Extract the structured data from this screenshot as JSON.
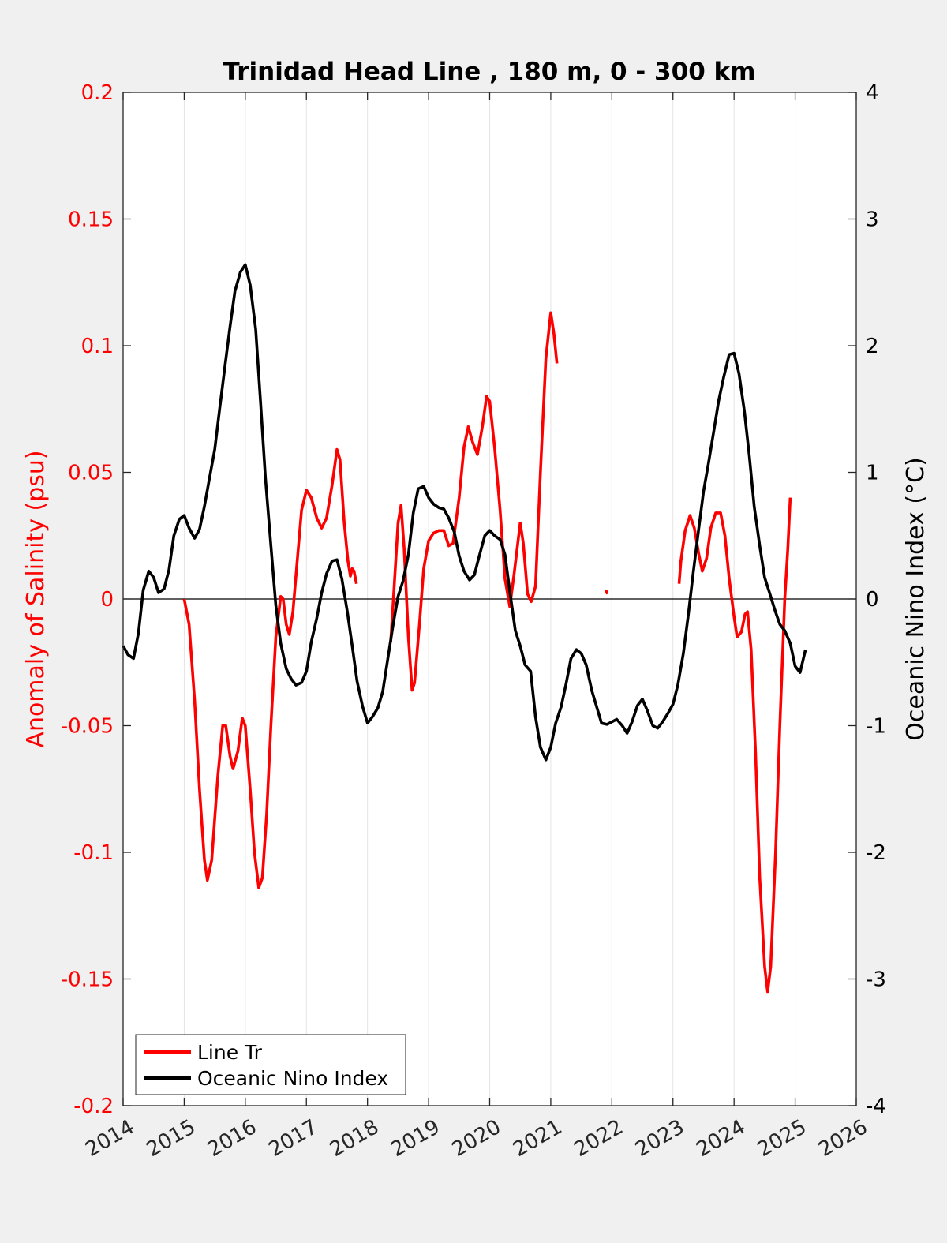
{
  "chart_data": {
    "type": "line",
    "title": "Trinidad Head Line , 180 m, 0 - 300 km",
    "ylabel_left": "Anomaly of Salinity (psu)",
    "ylabel_right": "Oceanic Nino Index (°C)",
    "xlim": [
      2014,
      2026
    ],
    "ylim_left": [
      -0.2,
      0.2
    ],
    "ylim_right": [
      -4,
      4
    ],
    "x_ticks": [
      "2014",
      "2015",
      "2016",
      "2017",
      "2018",
      "2019",
      "2020",
      "2021",
      "2022",
      "2023",
      "2024",
      "2025",
      "2026"
    ],
    "y_ticks_left": [
      "0.2",
      "0.15",
      "0.1",
      "0.05",
      "0",
      "-0.05",
      "-0.1",
      "-0.15",
      "-0.2"
    ],
    "y_ticks_right": [
      "4",
      "3",
      "2",
      "1",
      "0",
      "-1",
      "-2",
      "-3",
      "-4"
    ],
    "x_grid": true,
    "zero_line": true,
    "legend": {
      "position": "bottom-left",
      "entries": [
        "Line Tr",
        "Oceanic Nino Index"
      ]
    },
    "colors": {
      "salinity": "#ff0000",
      "oni": "#000000"
    },
    "series": [
      {
        "name": "Line Tr",
        "axis": "left",
        "segments": [
          [
            [
              2015.0,
              0.0
            ],
            [
              2015.08,
              -0.01
            ],
            [
              2015.17,
              -0.04
            ],
            [
              2015.25,
              -0.075
            ],
            [
              2015.33,
              -0.103
            ],
            [
              2015.38,
              -0.111
            ],
            [
              2015.45,
              -0.103
            ],
            [
              2015.55,
              -0.07
            ],
            [
              2015.63,
              -0.05
            ],
            [
              2015.68,
              -0.05
            ],
            [
              2015.75,
              -0.062
            ],
            [
              2015.8,
              -0.067
            ],
            [
              2015.88,
              -0.06
            ],
            [
              2015.95,
              -0.047
            ],
            [
              2016.0,
              -0.05
            ],
            [
              2016.08,
              -0.075
            ],
            [
              2016.15,
              -0.1
            ],
            [
              2016.22,
              -0.114
            ],
            [
              2016.28,
              -0.11
            ],
            [
              2016.35,
              -0.085
            ],
            [
              2016.42,
              -0.05
            ],
            [
              2016.5,
              -0.015
            ],
            [
              2016.58,
              0.001
            ],
            [
              2016.62,
              0.0
            ],
            [
              2016.67,
              -0.01
            ],
            [
              2016.72,
              -0.014
            ],
            [
              2016.78,
              -0.005
            ],
            [
              2016.85,
              0.015
            ],
            [
              2016.92,
              0.035
            ],
            [
              2017.0,
              0.043
            ],
            [
              2017.08,
              0.04
            ],
            [
              2017.17,
              0.032
            ],
            [
              2017.25,
              0.028
            ],
            [
              2017.33,
              0.032
            ],
            [
              2017.42,
              0.045
            ],
            [
              2017.5,
              0.059
            ],
            [
              2017.55,
              0.055
            ],
            [
              2017.62,
              0.03
            ],
            [
              2017.68,
              0.015
            ],
            [
              2017.72,
              0.009
            ],
            [
              2017.75,
              0.012
            ],
            [
              2017.78,
              0.011
            ],
            [
              2017.82,
              0.006
            ]
          ],
          [
            [
              2018.38,
              -0.017
            ],
            [
              2018.45,
              0.01
            ],
            [
              2018.5,
              0.03
            ],
            [
              2018.55,
              0.037
            ],
            [
              2018.6,
              0.02
            ],
            [
              2018.67,
              -0.015
            ],
            [
              2018.73,
              -0.036
            ],
            [
              2018.77,
              -0.033
            ],
            [
              2018.85,
              -0.01
            ],
            [
              2018.92,
              0.012
            ],
            [
              2019.0,
              0.023
            ],
            [
              2019.08,
              0.026
            ],
            [
              2019.17,
              0.027
            ],
            [
              2019.25,
              0.027
            ],
            [
              2019.33,
              0.021
            ],
            [
              2019.4,
              0.022
            ],
            [
              2019.5,
              0.04
            ],
            [
              2019.58,
              0.06
            ],
            [
              2019.65,
              0.068
            ],
            [
              2019.72,
              0.062
            ],
            [
              2019.8,
              0.057
            ],
            [
              2019.88,
              0.068
            ],
            [
              2019.95,
              0.08
            ],
            [
              2020.0,
              0.078
            ],
            [
              2020.08,
              0.06
            ],
            [
              2020.17,
              0.035
            ],
            [
              2020.25,
              0.008
            ],
            [
              2020.33,
              -0.003
            ],
            [
              2020.4,
              0.01
            ],
            [
              2020.5,
              0.03
            ],
            [
              2020.55,
              0.022
            ],
            [
              2020.62,
              0.002
            ],
            [
              2020.68,
              -0.001
            ],
            [
              2020.75,
              0.005
            ],
            [
              2020.83,
              0.05
            ],
            [
              2020.92,
              0.095
            ],
            [
              2021.0,
              0.113
            ],
            [
              2021.05,
              0.105
            ],
            [
              2021.1,
              0.093
            ]
          ],
          [
            [
              2021.9,
              0.0035
            ],
            [
              2021.93,
              0.002
            ]
          ],
          [
            [
              2023.1,
              0.006
            ],
            [
              2023.13,
              0.015
            ],
            [
              2023.2,
              0.027
            ],
            [
              2023.28,
              0.033
            ],
            [
              2023.35,
              0.028
            ],
            [
              2023.42,
              0.018
            ],
            [
              2023.48,
              0.011
            ],
            [
              2023.55,
              0.016
            ],
            [
              2023.62,
              0.028
            ],
            [
              2023.7,
              0.034
            ],
            [
              2023.78,
              0.034
            ],
            [
              2023.85,
              0.025
            ],
            [
              2023.92,
              0.008
            ],
            [
              2024.0,
              -0.007
            ],
            [
              2024.05,
              -0.015
            ],
            [
              2024.12,
              -0.013
            ],
            [
              2024.18,
              -0.006
            ],
            [
              2024.22,
              -0.005
            ],
            [
              2024.28,
              -0.02
            ],
            [
              2024.35,
              -0.06
            ],
            [
              2024.42,
              -0.11
            ],
            [
              2024.5,
              -0.145
            ],
            [
              2024.55,
              -0.155
            ],
            [
              2024.6,
              -0.145
            ],
            [
              2024.68,
              -0.1
            ],
            [
              2024.75,
              -0.05
            ],
            [
              2024.83,
              0.0
            ],
            [
              2024.88,
              0.02
            ],
            [
              2024.92,
              0.04
            ]
          ]
        ]
      },
      {
        "name": "Oceanic Nino Index",
        "axis": "right",
        "segments": [
          [
            [
              2014.0,
              -0.37
            ],
            [
              2014.08,
              -0.44
            ],
            [
              2014.17,
              -0.47
            ],
            [
              2014.25,
              -0.27
            ],
            [
              2014.33,
              0.07
            ],
            [
              2014.42,
              0.22
            ],
            [
              2014.5,
              0.17
            ],
            [
              2014.58,
              0.05
            ],
            [
              2014.67,
              0.08
            ],
            [
              2014.75,
              0.23
            ],
            [
              2014.83,
              0.5
            ],
            [
              2014.92,
              0.63
            ],
            [
              2015.0,
              0.66
            ],
            [
              2015.08,
              0.56
            ],
            [
              2015.17,
              0.48
            ],
            [
              2015.25,
              0.55
            ],
            [
              2015.33,
              0.73
            ],
            [
              2015.42,
              0.97
            ],
            [
              2015.5,
              1.18
            ],
            [
              2015.58,
              1.5
            ],
            [
              2015.67,
              1.85
            ],
            [
              2015.75,
              2.15
            ],
            [
              2015.83,
              2.43
            ],
            [
              2015.92,
              2.58
            ],
            [
              2016.0,
              2.64
            ],
            [
              2016.08,
              2.48
            ],
            [
              2016.17,
              2.13
            ],
            [
              2016.25,
              1.55
            ],
            [
              2016.33,
              0.95
            ],
            [
              2016.42,
              0.42
            ],
            [
              2016.5,
              -0.05
            ],
            [
              2016.58,
              -0.35
            ],
            [
              2016.67,
              -0.55
            ],
            [
              2016.75,
              -0.63
            ],
            [
              2016.83,
              -0.68
            ],
            [
              2016.92,
              -0.66
            ],
            [
              2017.0,
              -0.57
            ],
            [
              2017.08,
              -0.34
            ],
            [
              2017.17,
              -0.15
            ],
            [
              2017.25,
              0.05
            ],
            [
              2017.33,
              0.2
            ],
            [
              2017.42,
              0.3
            ],
            [
              2017.5,
              0.31
            ],
            [
              2017.58,
              0.16
            ],
            [
              2017.67,
              -0.1
            ],
            [
              2017.75,
              -0.37
            ],
            [
              2017.83,
              -0.65
            ],
            [
              2017.92,
              -0.85
            ],
            [
              2018.0,
              -0.98
            ],
            [
              2018.08,
              -0.93
            ],
            [
              2018.17,
              -0.86
            ],
            [
              2018.25,
              -0.73
            ],
            [
              2018.33,
              -0.48
            ],
            [
              2018.42,
              -0.2
            ],
            [
              2018.5,
              0.02
            ],
            [
              2018.58,
              0.14
            ],
            [
              2018.67,
              0.35
            ],
            [
              2018.75,
              0.68
            ],
            [
              2018.83,
              0.87
            ],
            [
              2018.92,
              0.89
            ],
            [
              2019.0,
              0.8
            ],
            [
              2019.08,
              0.75
            ],
            [
              2019.17,
              0.72
            ],
            [
              2019.25,
              0.71
            ],
            [
              2019.33,
              0.64
            ],
            [
              2019.42,
              0.53
            ],
            [
              2019.5,
              0.34
            ],
            [
              2019.58,
              0.22
            ],
            [
              2019.67,
              0.15
            ],
            [
              2019.75,
              0.19
            ],
            [
              2019.83,
              0.34
            ],
            [
              2019.92,
              0.5
            ],
            [
              2020.0,
              0.54
            ],
            [
              2020.08,
              0.5
            ],
            [
              2020.17,
              0.47
            ],
            [
              2020.25,
              0.35
            ],
            [
              2020.33,
              0.06
            ],
            [
              2020.42,
              -0.25
            ],
            [
              2020.5,
              -0.37
            ],
            [
              2020.58,
              -0.52
            ],
            [
              2020.67,
              -0.57
            ],
            [
              2020.75,
              -0.93
            ],
            [
              2020.83,
              -1.17
            ],
            [
              2020.92,
              -1.27
            ],
            [
              2021.0,
              -1.17
            ],
            [
              2021.08,
              -0.98
            ],
            [
              2021.17,
              -0.85
            ],
            [
              2021.25,
              -0.67
            ],
            [
              2021.33,
              -0.47
            ],
            [
              2021.42,
              -0.4
            ],
            [
              2021.5,
              -0.43
            ],
            [
              2021.58,
              -0.52
            ],
            [
              2021.67,
              -0.72
            ],
            [
              2021.75,
              -0.85
            ],
            [
              2021.83,
              -0.98
            ],
            [
              2021.92,
              -0.99
            ],
            [
              2022.0,
              -0.97
            ],
            [
              2022.08,
              -0.95
            ],
            [
              2022.17,
              -1.0
            ],
            [
              2022.25,
              -1.06
            ],
            [
              2022.33,
              -0.97
            ],
            [
              2022.42,
              -0.84
            ],
            [
              2022.5,
              -0.79
            ],
            [
              2022.58,
              -0.88
            ],
            [
              2022.67,
              -1.0
            ],
            [
              2022.75,
              -1.02
            ],
            [
              2022.83,
              -0.97
            ],
            [
              2022.92,
              -0.9
            ],
            [
              2023.0,
              -0.83
            ],
            [
              2023.08,
              -0.68
            ],
            [
              2023.17,
              -0.43
            ],
            [
              2023.25,
              -0.13
            ],
            [
              2023.33,
              0.2
            ],
            [
              2023.42,
              0.55
            ],
            [
              2023.5,
              0.85
            ],
            [
              2023.58,
              1.07
            ],
            [
              2023.67,
              1.33
            ],
            [
              2023.75,
              1.57
            ],
            [
              2023.83,
              1.75
            ],
            [
              2023.92,
              1.93
            ],
            [
              2024.0,
              1.94
            ],
            [
              2024.08,
              1.78
            ],
            [
              2024.17,
              1.48
            ],
            [
              2024.25,
              1.13
            ],
            [
              2024.33,
              0.73
            ],
            [
              2024.42,
              0.42
            ],
            [
              2024.5,
              0.17
            ],
            [
              2024.58,
              0.05
            ],
            [
              2024.67,
              -0.09
            ],
            [
              2024.75,
              -0.2
            ],
            [
              2024.83,
              -0.25
            ],
            [
              2024.92,
              -0.35
            ],
            [
              2025.0,
              -0.53
            ],
            [
              2025.08,
              -0.58
            ],
            [
              2025.17,
              -0.4
            ]
          ]
        ]
      }
    ]
  }
}
